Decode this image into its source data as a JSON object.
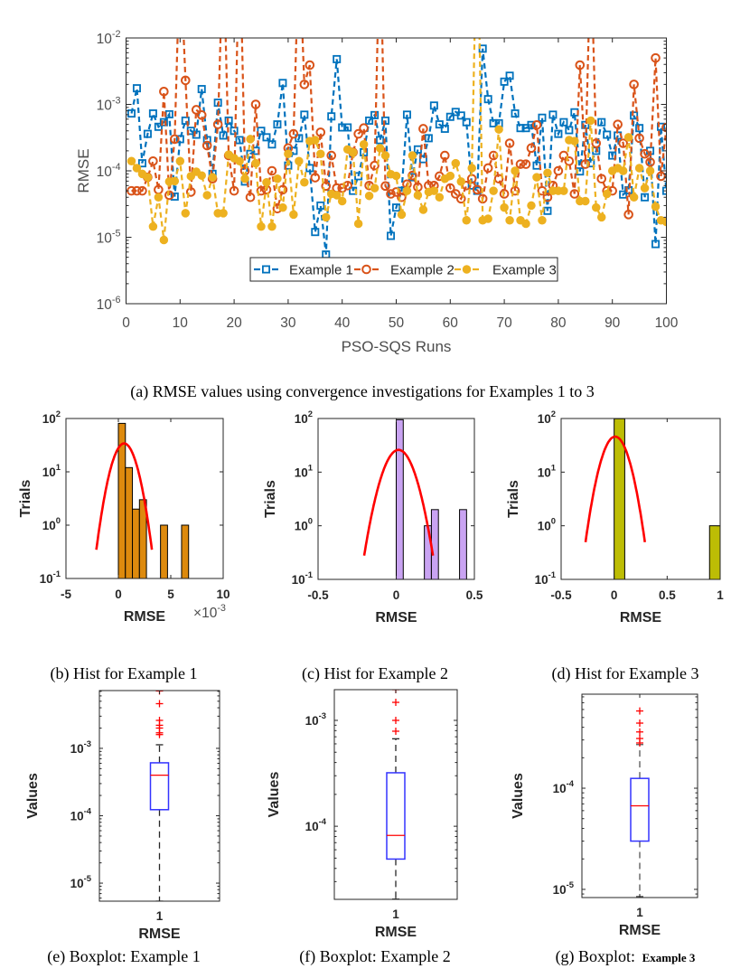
{
  "figure": {
    "captions": {
      "a": "(a) RMSE values using convergence investigations for Examples 1 to 3",
      "b": "(b) Hist for Example 1",
      "c": "(c) Hist for Example 2",
      "d": "(d) Hist for Example 3",
      "e": "(e) Boxplot: Example 1",
      "f": "(f) Boxplot: Example 2",
      "g": {
        "prefix": "(g) Boxplot:",
        "suffix": "Example 3"
      }
    }
  },
  "chart_data": [
    {
      "id": "a",
      "type": "line",
      "title": "",
      "xlabel": "PSO-SQS Runs",
      "ylabel": "RMSE",
      "xlim": [
        0,
        100
      ],
      "ylim": [
        1e-06,
        0.01
      ],
      "yscale": "log",
      "grid": false,
      "xticks": [
        0,
        10,
        20,
        30,
        40,
        50,
        60,
        70,
        80,
        90,
        100
      ],
      "xtick_labels": [
        "0",
        "10",
        "20",
        "30",
        "40",
        "50",
        "60",
        "70",
        "80",
        "90",
        "100"
      ],
      "yticks": [
        1e-06,
        1e-05,
        0.0001,
        0.001,
        0.01
      ],
      "ytick_labels": [
        [
          "10",
          "-6"
        ],
        [
          "10",
          "-5"
        ],
        [
          "10",
          "-4"
        ],
        [
          "10",
          "-3"
        ],
        [
          "10",
          "-2"
        ]
      ],
      "legend": {
        "location": "bottom-center",
        "orientation": "horizontal"
      },
      "x": [
        1,
        2,
        3,
        4,
        5,
        6,
        7,
        8,
        9,
        10,
        11,
        12,
        13,
        14,
        15,
        16,
        17,
        18,
        19,
        20,
        21,
        22,
        23,
        24,
        25,
        26,
        27,
        28,
        29,
        30,
        31,
        32,
        33,
        34,
        35,
        36,
        37,
        38,
        39,
        40,
        41,
        42,
        43,
        44,
        45,
        46,
        47,
        48,
        49,
        50,
        51,
        52,
        53,
        54,
        55,
        56,
        57,
        58,
        59,
        60,
        61,
        62,
        63,
        64,
        65,
        66,
        67,
        68,
        69,
        70,
        71,
        72,
        73,
        74,
        75,
        76,
        77,
        78,
        79,
        80,
        81,
        82,
        83,
        84,
        85,
        86,
        87,
        88,
        89,
        90,
        91,
        92,
        93,
        94,
        95,
        96,
        97,
        98,
        99,
        100
      ],
      "series": [
        {
          "name": "Example 1",
          "color": "#0072BD",
          "marker": "square",
          "line_style": "dashed",
          "values": [
            0.00073,
            0.00175,
            0.00013,
            0.00036,
            0.00073,
            0.00046,
            0.00054,
            0.00071,
            4.1e-05,
            0.0003,
            0.00057,
            0.0004,
            0.00035,
            0.0017,
            0.00029,
            9e-05,
            0.00106,
            0.00034,
            0.00057,
            0.0004,
            0.00029,
            6.9e-05,
            0.00018,
            0.0002,
            0.0004,
            0.00032,
            0.00025,
            0.0005,
            0.0021,
            0.00012,
            0.0002,
            0.00031,
            0.0007,
            0.00011,
            1.2e-05,
            3e-05,
            5.5e-06,
            0.00066,
            0.0048,
            0.00045,
            0.00045,
            5e-05,
            8.3e-05,
            0.00019,
            0.00057,
            0.00069,
            0.00029,
            0.00057,
            1.05e-05,
            2.8e-05,
            5e-05,
            0.0007,
            8e-05,
            0.00021,
            0.00015,
            0.00031,
            0.00096,
            0.0005,
            0.00043,
            0.00065,
            0.00077,
            0.00068,
            0.00054,
            6e-05,
            5e-05,
            0.0069,
            0.0012,
            0.00052,
            0.00052,
            0.0022,
            0.0027,
            0.00073,
            0.00044,
            0.00044,
            0.00049,
            0.00012,
            0.00063,
            2.5e-05,
            0.0007,
            0.00036,
            0.00054,
            0.00041,
            0.00076,
            9.8e-05,
            0.00049,
            0.00013,
            0.0002,
            0.00054,
            0.00035,
            0.00017,
            0.00034,
            4.4e-05,
            5.1e-05,
            0.00068,
            0.00044,
            4e-05,
            0.0002,
            7.9e-06,
            0.00046,
            5e-05
          ]
        },
        {
          "name": "Example 2",
          "color": "#D95319",
          "marker": "circle",
          "line_style": "dashed",
          "values": [
            5e-05,
            5e-05,
            5e-05,
            8e-05,
            0.00014,
            5.2e-05,
            0.00156,
            4.3e-05,
            0.0003,
            0.2,
            0.0023,
            4.8e-05,
            0.00083,
            0.00069,
            0.00024,
            7.6e-05,
            0.0005,
            0.25,
            0.00017,
            5e-05,
            0.43,
            0.0001,
            4e-05,
            0.001,
            5e-05,
            5.2e-05,
            0.0001,
            2.7e-05,
            5.2e-05,
            0.00022,
            0.00036,
            0.24,
            0.002,
            0.0039,
            7.9e-05,
            0.00038,
            5.9e-05,
            0.00017,
            5.5e-05,
            5.5e-05,
            6e-05,
            0.00019,
            0.00036,
            0.00044,
            6e-05,
            0.00012,
            0.44,
            5.9e-05,
            4.5e-05,
            4.8e-05,
            4e-05,
            6.3e-05,
            8.5e-05,
            5.7e-05,
            0.00043,
            6e-05,
            6e-05,
            8.3e-05,
            0.00017,
            5.5e-05,
            4.5e-05,
            3.8e-05,
            6e-05,
            7.6e-05,
            5.2e-05,
            3.8e-05,
            0.00011,
            0.00017,
            7.6e-05,
            4.5e-05,
            0.00026,
            5e-05,
            0.000126,
            0.000126,
            0.00022,
            0.00049,
            5e-05,
            4e-05,
            6e-05,
            0.0001,
            0.00017,
            0.00014,
            4.5e-05,
            0.0039,
            0.000126,
            0.21,
            0.00026,
            7.6e-05,
            5e-05,
            5e-05,
            0.0005,
            0.00026,
            2.2e-05,
            0.002,
            0.00031,
            0.00018,
            0.000135,
            0.005,
            8.3e-05,
            0.00045
          ]
        },
        {
          "name": "Example 3",
          "color": "#EDB120",
          "marker": "filled",
          "line_style": "dashed",
          "values": [
            0.00014,
            0.00011,
            9e-05,
            8e-05,
            1.45e-05,
            4e-05,
            9.1e-06,
            6.9e-05,
            7e-05,
            0.00014,
            2.3e-05,
            8.3e-05,
            9.7e-05,
            8.5e-05,
            4.3e-05,
            8e-05,
            2.3e-05,
            2.3e-05,
            0.000175,
            0.000155,
            0.00014,
            7.6e-05,
            0.0003,
            0.00013,
            1.45e-05,
            6.7e-05,
            1.45e-05,
            7.6e-05,
            2.8e-05,
            0.00018,
            2.2e-05,
            0.00014,
            6.7e-05,
            0.00028,
            0.00029,
            0.00018,
            2e-05,
            4.5e-05,
            4.3e-05,
            3.5e-05,
            0.00021,
            0.00019,
            1.6e-05,
            0.00025,
            4.2e-05,
            5.5e-05,
            0.00022,
            0.00017,
            8.9e-05,
            8.4e-05,
            2.2e-05,
            5e-05,
            0.00017,
            4.3e-05,
            2.6e-05,
            4.8e-05,
            5e-05,
            4e-05,
            7.6e-05,
            8.4e-05,
            0.00013,
            6.9e-05,
            1.8e-05,
            0.00011,
            0.95,
            1.8e-05,
            1.9e-05,
            5e-05,
            0.00042,
            2.8e-05,
            1.8e-05,
            0.0001,
            1.8e-05,
            1.6e-05,
            3e-05,
            8e-05,
            1.8e-05,
            9.3e-05,
            5e-05,
            5e-05,
            5e-05,
            0.00029,
            0.00028,
            3.5e-05,
            3.5e-05,
            0.00057,
            2.8e-05,
            2e-05,
            4.5e-05,
            0.0001,
            0.00011,
            0.0001,
            0.00032,
            4e-05,
            0.00011,
            5.5e-05,
            0.0001,
            2.9e-05,
            1.8e-05,
            1.7e-05
          ]
        }
      ]
    },
    {
      "id": "b",
      "type": "bar",
      "kind": "histogram",
      "title": "",
      "xlabel": "RMSE",
      "ylabel": "Trials",
      "x_multiplier": [
        "×10",
        "-3"
      ],
      "xlim": [
        -5,
        10
      ],
      "xticks": [
        -5,
        0,
        5,
        10
      ],
      "xtick_labels": [
        "-5",
        "0",
        "5",
        "10"
      ],
      "ylim": [
        0.1,
        100
      ],
      "yscale": "log",
      "yticks": [
        0.1,
        1,
        10,
        100
      ],
      "ytick_labels": [
        [
          "10",
          "-1"
        ],
        [
          "10",
          "0"
        ],
        [
          "10",
          "1"
        ],
        [
          "10",
          "2"
        ]
      ],
      "bar_color": "#DD8A0E",
      "bins": {
        "edges": [
          0,
          0.67,
          1.34,
          2.01,
          2.68,
          3.35,
          4.02,
          4.69,
          5.36,
          6.03,
          6.7
        ],
        "counts": [
          81,
          12,
          2,
          3,
          0,
          0,
          1,
          0,
          0,
          1
        ]
      },
      "fit": {
        "type": "normal",
        "mu": 0.55,
        "sigma": 0.875,
        "peak": 34,
        "x_range": [
          -2.1,
          3.2
        ],
        "color": "#FF0000"
      }
    },
    {
      "id": "c",
      "type": "bar",
      "kind": "histogram",
      "title": "",
      "xlabel": "RMSE",
      "ylabel": "Trials",
      "xlim": [
        -0.5,
        0.5
      ],
      "xticks": [
        -0.5,
        0,
        0.5
      ],
      "xtick_labels": [
        "-0.5",
        "0",
        "0.5"
      ],
      "ylim": [
        0.1,
        100
      ],
      "yscale": "log",
      "yticks": [
        0.1,
        1,
        10,
        100
      ],
      "ytick_labels": [
        [
          "10",
          "-1"
        ],
        [
          "10",
          "0"
        ],
        [
          "10",
          "1"
        ],
        [
          "10",
          "2"
        ]
      ],
      "bar_color": "#C9A3F2",
      "bins": {
        "edges": [
          0,
          0.045,
          0.09,
          0.135,
          0.18,
          0.225,
          0.27,
          0.315,
          0.36,
          0.405,
          0.45
        ],
        "counts": [
          95,
          0,
          0,
          0,
          1,
          2,
          0,
          0,
          0,
          2
        ]
      },
      "fit": {
        "type": "normal",
        "mu": 0.015,
        "sigma": 0.073,
        "peak": 26,
        "x_range": [
          -0.205,
          0.235
        ],
        "color": "#FF0000"
      }
    },
    {
      "id": "d",
      "type": "bar",
      "kind": "histogram",
      "title": "",
      "xlabel": "RMSE",
      "ylabel": "Trials",
      "xlim": [
        -0.5,
        1
      ],
      "xticks": [
        -0.5,
        0,
        0.5,
        1
      ],
      "xtick_labels": [
        "-0.5",
        "0",
        "0.5",
        "1"
      ],
      "ylim": [
        0.1,
        100
      ],
      "yscale": "log",
      "yticks": [
        0.1,
        1,
        10,
        100
      ],
      "ytick_labels": [
        [
          "10",
          "-1"
        ],
        [
          "10",
          "0"
        ],
        [
          "10",
          "1"
        ],
        [
          "10",
          "2"
        ]
      ],
      "bar_color": "#BDBD05",
      "bins": {
        "edges": [
          0,
          0.1,
          0.2,
          0.3,
          0.4,
          0.5,
          0.6,
          0.7,
          0.8,
          0.9,
          1.0
        ],
        "counts": [
          99,
          0,
          0,
          0,
          0,
          0,
          0,
          0,
          0,
          1
        ]
      },
      "fit": {
        "type": "normal",
        "mu": 0.01,
        "sigma": 0.093,
        "peak": 46,
        "x_range": [
          -0.27,
          0.29
        ],
        "color": "#FF0000"
      }
    },
    {
      "id": "e",
      "type": "box",
      "title": "",
      "xlabel": "RMSE",
      "ylabel": "Values",
      "category": "1",
      "ylim": [
        5.4e-06,
        0.0072
      ],
      "yscale": "log",
      "yticks": [
        1e-05,
        0.0001,
        0.001
      ],
      "ytick_labels": [
        [
          "10",
          "-5"
        ],
        [
          "10",
          "-4"
        ],
        [
          "10",
          "-3"
        ]
      ],
      "stats": {
        "q1": 0.000123,
        "median": 0.0004,
        "q3": 0.00061,
        "whisker_low": 5.4e-06,
        "whisker_high": 0.00113
      },
      "outliers": [
        0.0071,
        0.0046,
        0.0026,
        0.0022,
        0.002,
        0.0017,
        0.0016
      ],
      "colors": {
        "box": "#3333FF",
        "median": "#FF0000",
        "whisker": "#262626",
        "outlier": "#FF0000"
      }
    },
    {
      "id": "f",
      "type": "box",
      "title": "",
      "xlabel": "RMSE",
      "ylabel": "Values",
      "category": "1",
      "ylim": [
        2.04e-05,
        0.00195
      ],
      "yscale": "log",
      "yticks": [
        0.0001,
        0.001
      ],
      "ytick_labels": [
        [
          "10",
          "-4"
        ],
        [
          "10",
          "-3"
        ]
      ],
      "stats": {
        "q1": 4.9e-05,
        "median": 8.2e-05,
        "q3": 0.00032,
        "whisker_low": 2.05e-05,
        "whisker_high": 0.00067
      },
      "outliers": [
        0.00195,
        0.00148,
        0.001,
        0.00079
      ],
      "colors": {
        "box": "#3333FF",
        "median": "#FF0000",
        "whisker": "#262626",
        "outlier": "#FF0000"
      }
    },
    {
      "id": "g",
      "type": "box",
      "title": "",
      "xlabel": "RMSE",
      "ylabel": "Values",
      "category": "1",
      "ylim": [
        8.3e-06,
        0.00085
      ],
      "yscale": "log",
      "yticks": [
        1e-05,
        0.0001
      ],
      "ytick_labels": [
        [
          "10",
          "-5"
        ],
        [
          "10",
          "-4"
        ]
      ],
      "stats": {
        "q1": 3e-05,
        "median": 6.7e-05,
        "q3": 0.000125,
        "whisker_low": 8.5e-06,
        "whisker_high": 0.00027
      },
      "outliers": [
        0.00058,
        0.00044,
        0.00036,
        0.00031,
        0.00028
      ],
      "colors": {
        "box": "#3333FF",
        "median": "#FF0000",
        "whisker": "#555555",
        "outlier": "#FF0000"
      }
    }
  ]
}
